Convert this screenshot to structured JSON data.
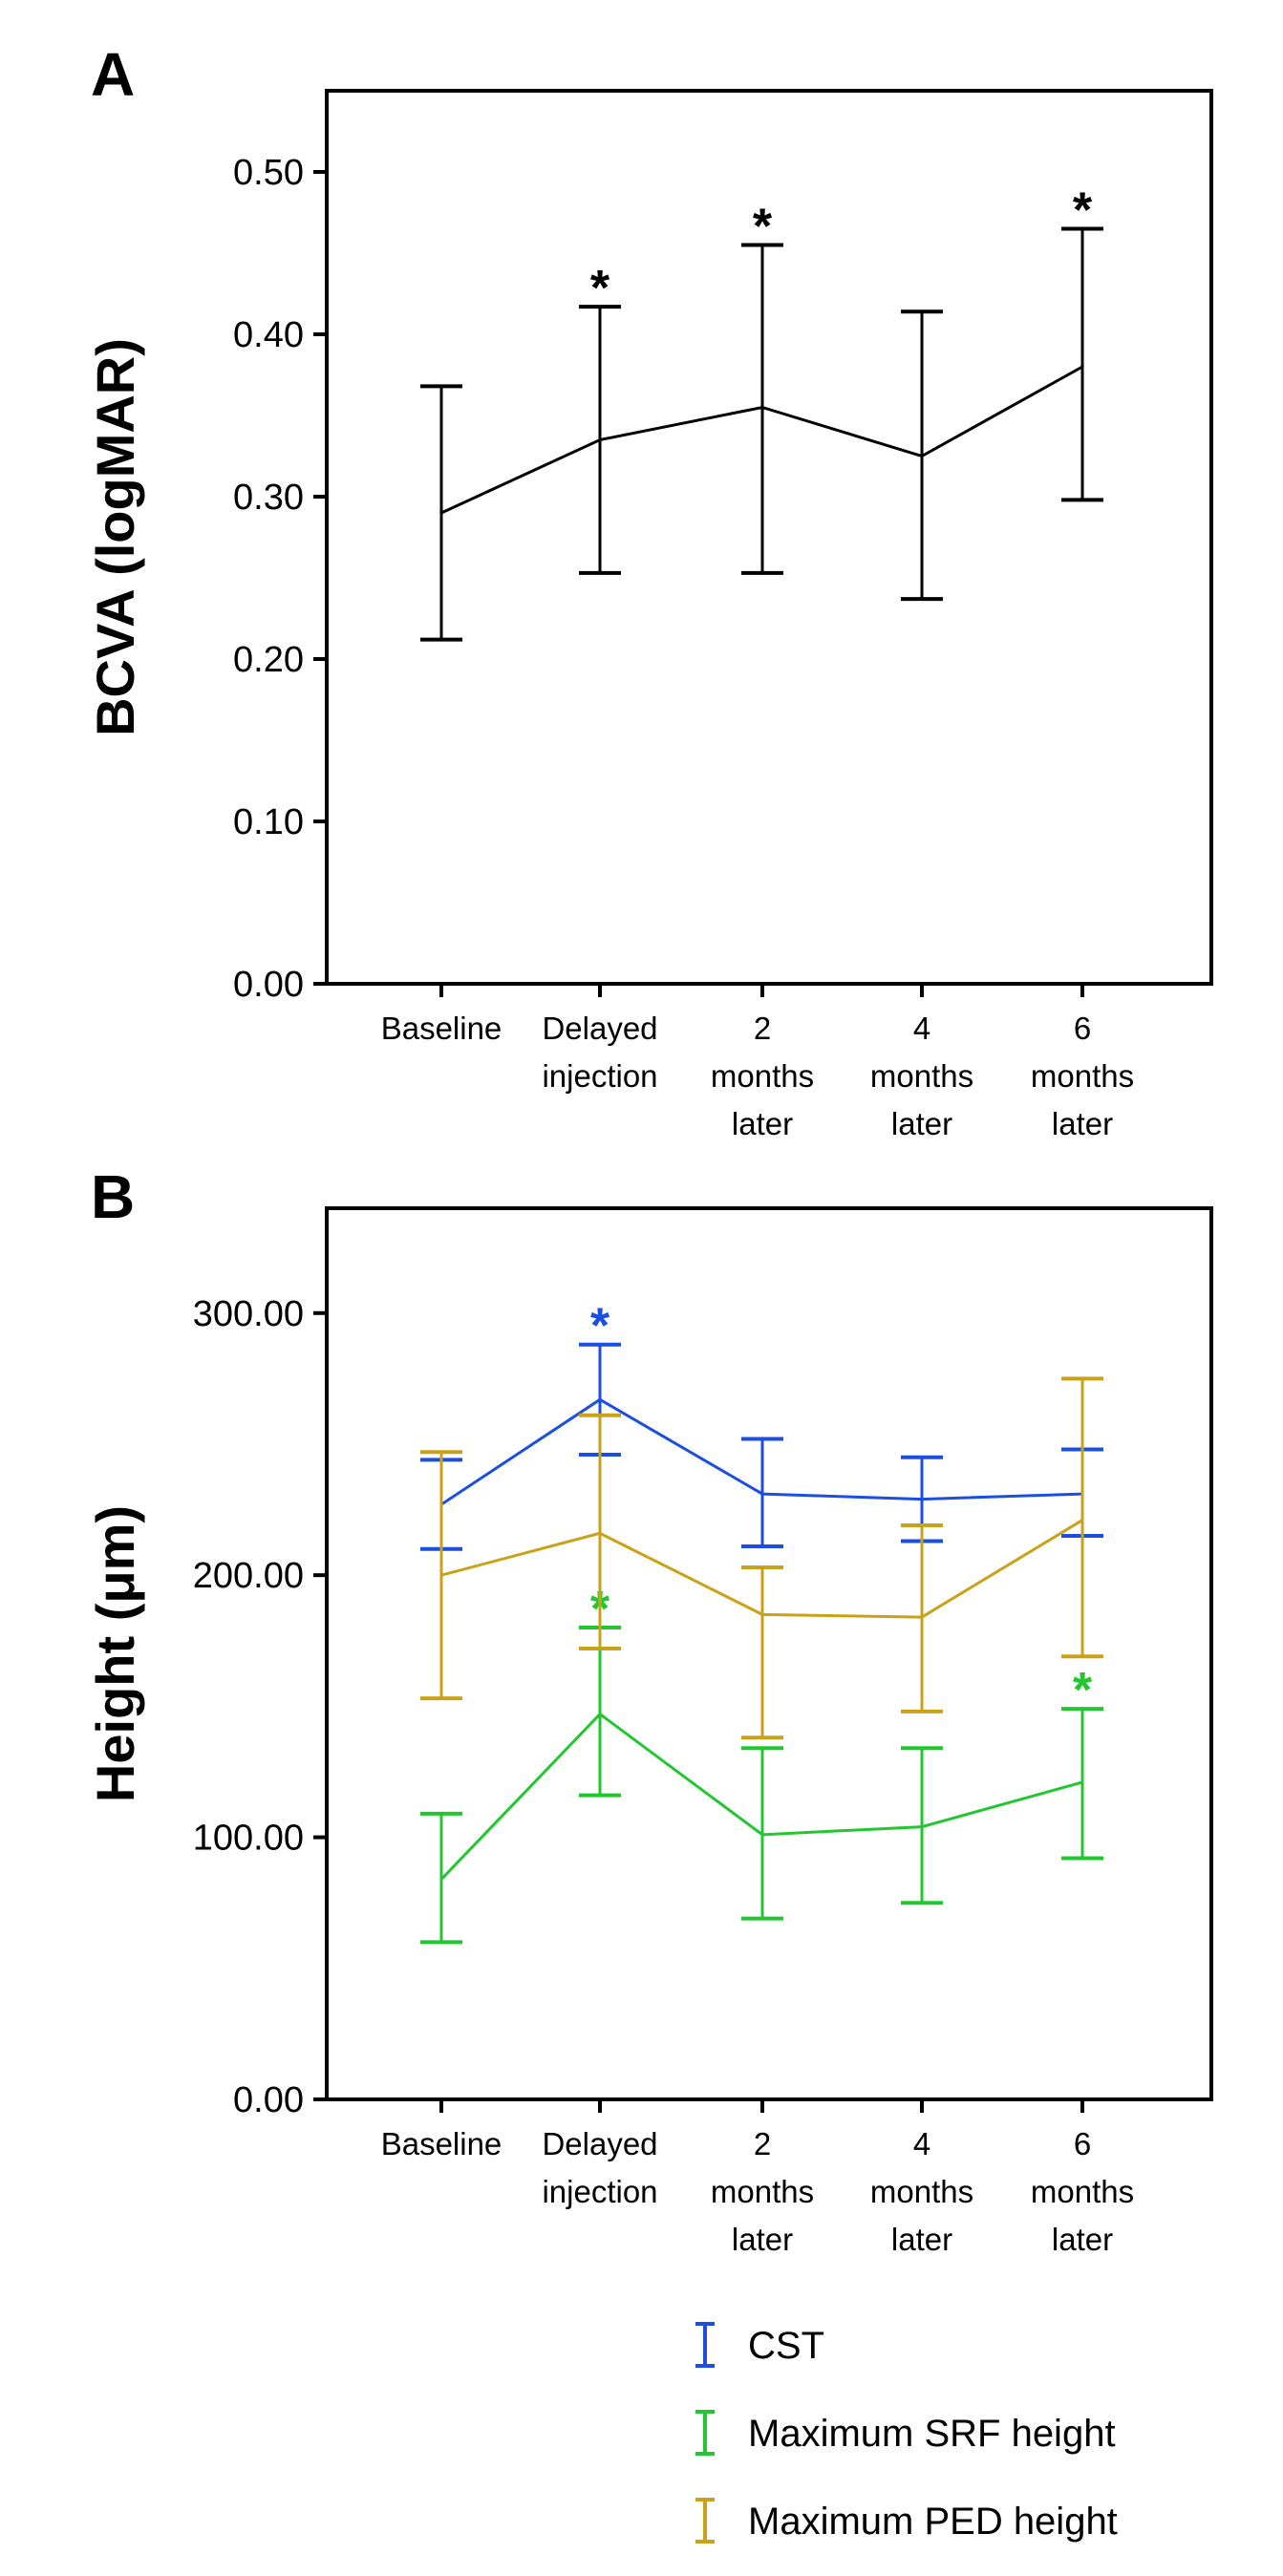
{
  "figure": {
    "panel_a_letter": "A",
    "panel_b_letter": "B"
  },
  "chart_data": [
    {
      "type": "line",
      "panel": "A",
      "title": "",
      "xlabel": "",
      "ylabel": "BCVA (logMAR)",
      "ylim": [
        0,
        0.55
      ],
      "yticks": [
        0,
        0.1,
        0.2,
        0.3,
        0.4,
        0.5
      ],
      "ytick_labels": [
        "0.00",
        "0.10",
        "0.20",
        "0.30",
        "0.40",
        "0.50"
      ],
      "categories": [
        [
          "Baseline"
        ],
        [
          "Delayed",
          "injection"
        ],
        [
          "2",
          "months",
          "later"
        ],
        [
          "4",
          "months",
          "later"
        ],
        [
          "6",
          "months",
          "later"
        ]
      ],
      "series": [
        {
          "name": "BCVA",
          "color": "#000000",
          "values": [
            0.29,
            0.335,
            0.355,
            0.325,
            0.38
          ],
          "err_low": [
            0.212,
            0.253,
            0.253,
            0.237,
            0.298
          ],
          "err_high": [
            0.368,
            0.417,
            0.455,
            0.414,
            0.465
          ],
          "significant": [
            false,
            true,
            true,
            false,
            true
          ]
        }
      ],
      "significance_marker": "*",
      "grid": false
    },
    {
      "type": "line",
      "panel": "B",
      "title": "",
      "xlabel": "",
      "ylabel": "Height (μm)",
      "ylim": [
        0,
        340
      ],
      "yticks": [
        0,
        100,
        200,
        300
      ],
      "ytick_labels": [
        "0.00",
        "100.00",
        "200.00",
        "300.00"
      ],
      "categories": [
        [
          "Baseline"
        ],
        [
          "Delayed",
          "injection"
        ],
        [
          "2",
          "months",
          "later"
        ],
        [
          "4",
          "months",
          "later"
        ],
        [
          "6",
          "months",
          "later"
        ]
      ],
      "series": [
        {
          "name": "CST",
          "color": "#1c4fe0",
          "values": [
            227,
            267,
            231,
            229,
            231
          ],
          "err_low": [
            210,
            246,
            211,
            213,
            215
          ],
          "err_high": [
            244,
            288,
            252,
            245,
            248
          ],
          "significant": [
            false,
            true,
            false,
            false,
            false
          ]
        },
        {
          "name": "Maximum SRF height",
          "color": "#22c730",
          "values": [
            84,
            147,
            101,
            104,
            121
          ],
          "err_low": [
            60,
            116,
            69,
            75,
            92
          ],
          "err_high": [
            109,
            180,
            134,
            134,
            149
          ],
          "significant": [
            false,
            true,
            false,
            false,
            true
          ]
        },
        {
          "name": "Maximum PED height",
          "color": "#c9a21a",
          "values": [
            200,
            216,
            185,
            184,
            221
          ],
          "err_low": [
            153,
            172,
            138,
            148,
            169
          ],
          "err_high": [
            247,
            261,
            203,
            219,
            275
          ],
          "significant": [
            false,
            false,
            false,
            false,
            false
          ]
        }
      ],
      "significance_marker": "*",
      "legend": {
        "position": "bottom",
        "entries": [
          "CST",
          "Maximum SRF height",
          "Maximum PED height"
        ]
      },
      "grid": false
    }
  ]
}
